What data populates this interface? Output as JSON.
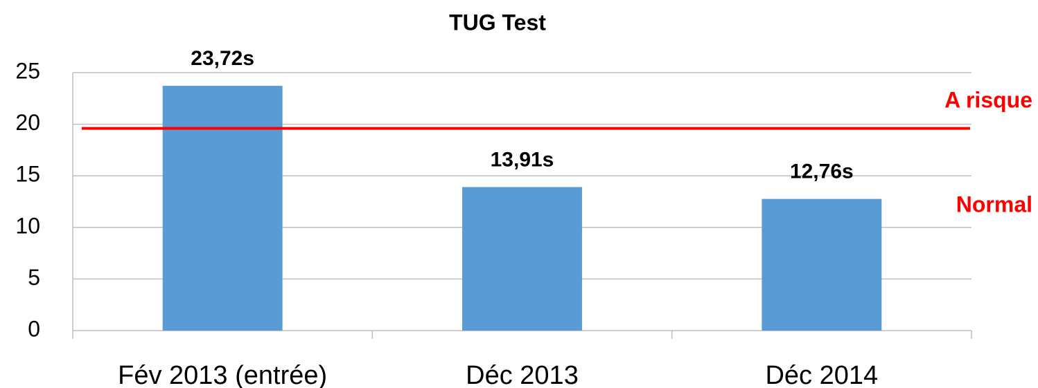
{
  "chart_data": {
    "type": "bar",
    "title": "TUG Test",
    "categories": [
      "Fév 2013 (entrée)",
      "Déc 2013",
      "Déc 2014"
    ],
    "values": [
      23.72,
      13.91,
      12.76
    ],
    "value_labels": [
      "23,72s",
      "13,91s",
      "12,76s"
    ],
    "color": "#5b9bd5",
    "ylim": [
      0,
      25
    ],
    "yticks": [
      0,
      5,
      10,
      15,
      20,
      25
    ],
    "grid": true,
    "threshold": {
      "value": 19.6,
      "color": "#ff0000"
    },
    "annotations": [
      "A risque",
      "Normal"
    ]
  }
}
